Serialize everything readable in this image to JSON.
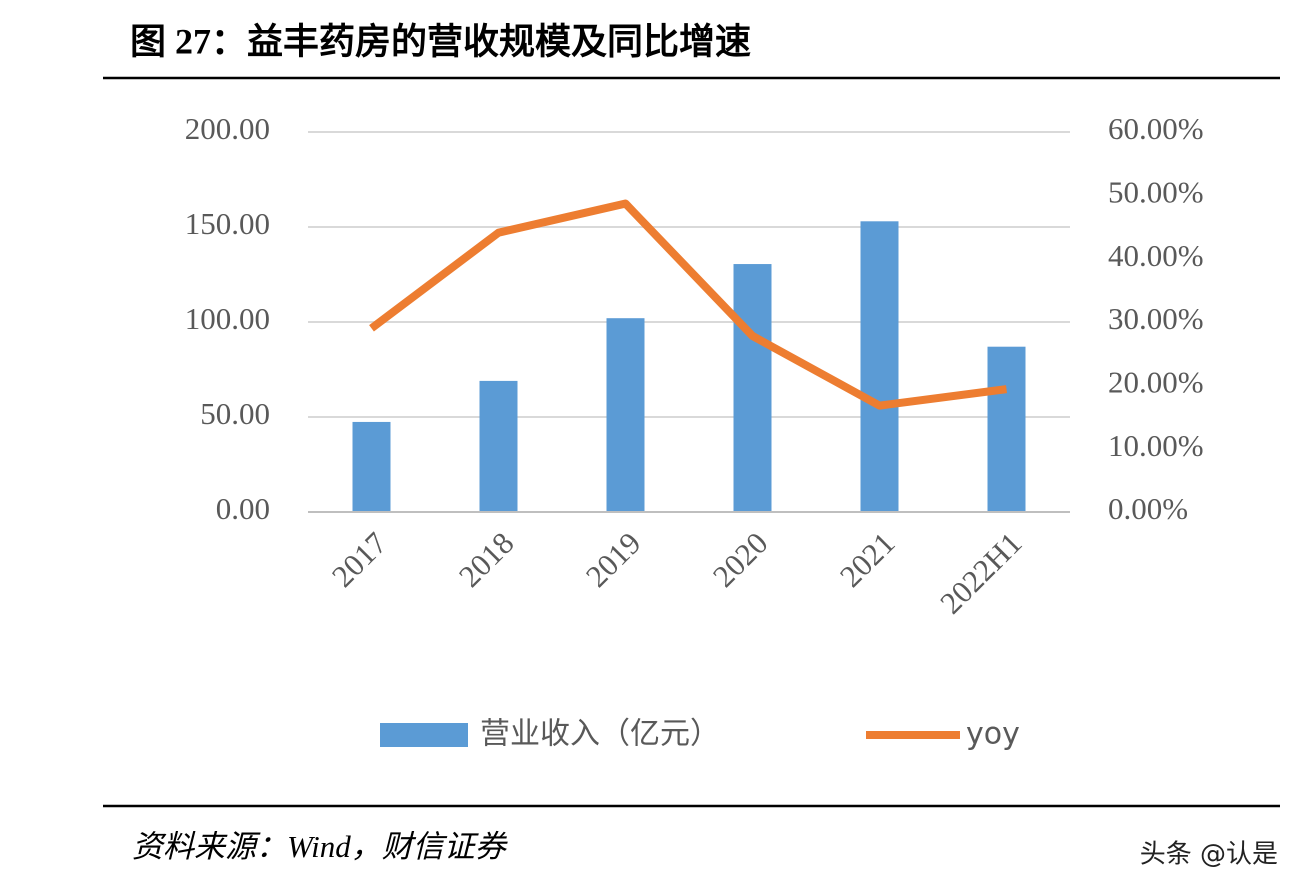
{
  "chart_data": {
    "type": "bar",
    "title": "图 27：益丰药房的营收规模及同比增速",
    "categories": [
      "2017",
      "2018",
      "2019",
      "2020",
      "2021",
      "2022H1"
    ],
    "series": [
      {
        "name": "营业收入（亿元）",
        "type": "bar",
        "color": "#5b9bd5",
        "values": [
          47.4,
          69,
          102,
          130.5,
          153,
          87
        ]
      },
      {
        "name": "yoy",
        "type": "line",
        "axis": "y2",
        "color": "#ed7d31",
        "values": [
          29.0,
          44.1,
          48.7,
          27.8,
          16.8,
          19.4
        ]
      }
    ],
    "ylim": [
      0,
      200
    ],
    "yticks": [
      {
        "value": 0,
        "label": "0.00"
      },
      {
        "value": 50,
        "label": "50.00"
      },
      {
        "value": 100,
        "label": "100.00"
      },
      {
        "value": 150,
        "label": "150.00"
      },
      {
        "value": 200,
        "label": "200.00"
      }
    ],
    "y2lim": [
      0,
      60
    ],
    "y2ticks": [
      {
        "value": 0,
        "label": "0.00%"
      },
      {
        "value": 10,
        "label": "10.00%"
      },
      {
        "value": 20,
        "label": "20.00%"
      },
      {
        "value": 30,
        "label": "30.00%"
      },
      {
        "value": 40,
        "label": "40.00%"
      },
      {
        "value": 50,
        "label": "50.00%"
      },
      {
        "value": 60,
        "label": "60.00%"
      }
    ],
    "grid": true,
    "legend": "bottom"
  },
  "source": "资料来源：Wind，财信证券",
  "watermark": "头条 @认是"
}
